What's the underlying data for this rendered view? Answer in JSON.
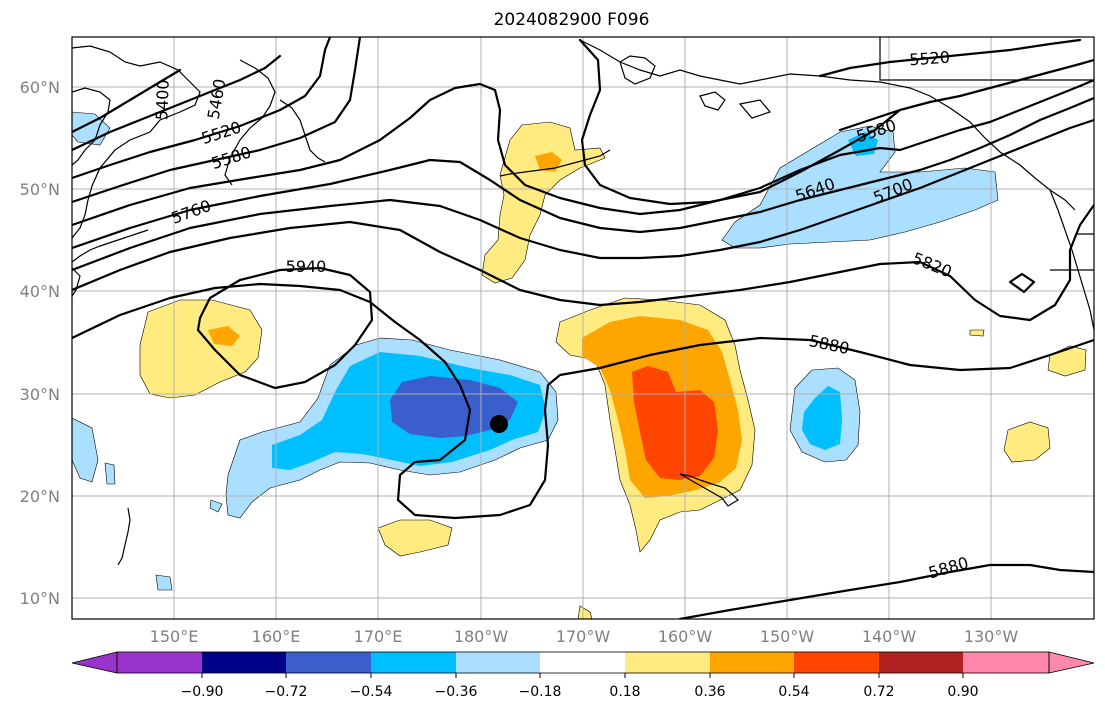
{
  "title": "2024082900 F096",
  "map": {
    "lat_labels": [
      "60°N",
      "50°N",
      "40°N",
      "30°N",
      "20°N",
      "10°N"
    ],
    "lon_labels": [
      "150°E",
      "160°E",
      "170°E",
      "180°W",
      "170°W",
      "160°W",
      "150°W",
      "140°W",
      "130°W"
    ],
    "contour_labels": [
      "5400",
      "5460",
      "5520",
      "5580",
      "5760",
      "5940",
      "5520",
      "5580",
      "5640",
      "5700",
      "5820",
      "5880",
      "5880"
    ],
    "storm_marker": {
      "lon": -176.8,
      "lat": 27.0
    }
  },
  "colorbar": {
    "tick_labels": [
      "−0.90",
      "−0.72",
      "−0.54",
      "−0.36",
      "−0.18",
      "0.18",
      "0.36",
      "0.54",
      "0.72",
      "0.90"
    ],
    "colors": [
      "#9933cc",
      "#000088",
      "#3a5fcd",
      "#00bfff",
      "#aadfff",
      "#ffffff",
      "#ffeb80",
      "#ffa500",
      "#ff4500",
      "#b22222",
      "#ff88aa"
    ]
  }
}
